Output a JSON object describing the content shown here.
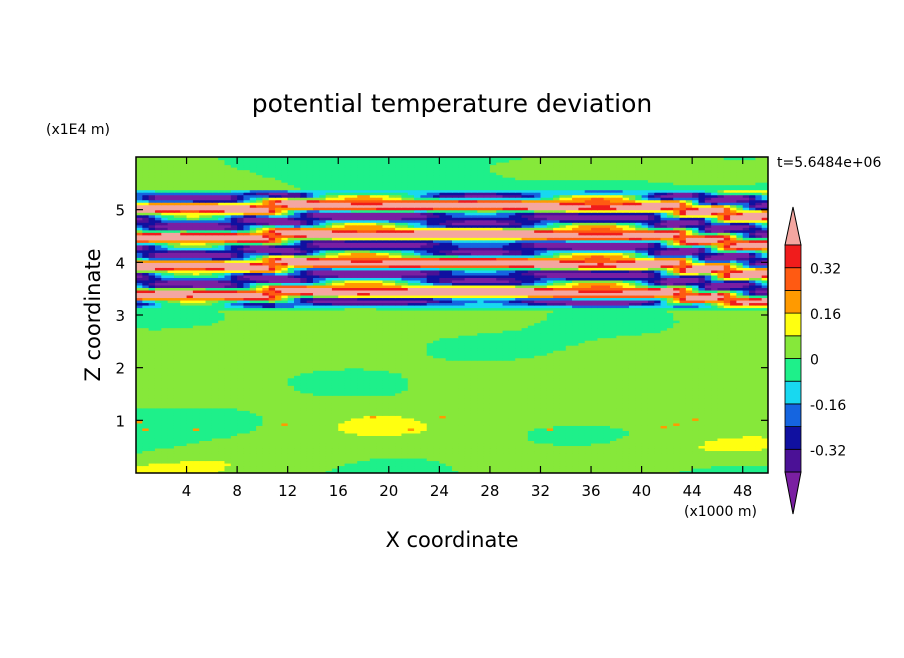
{
  "chart_data": {
    "type": "heatmap",
    "title": "potential temperature deviation",
    "xlabel": "X coordinate",
    "ylabel": "Z coordinate",
    "x_unit": "(x1000 m)",
    "y_unit": "(x1E4 m)",
    "time_label": "t=5.6484e+06",
    "xlim": [
      0,
      50
    ],
    "ylim": [
      0,
      6
    ],
    "x_ticks": [
      4,
      8,
      12,
      16,
      20,
      24,
      28,
      32,
      36,
      40,
      44,
      48
    ],
    "y_ticks": [
      1,
      2,
      3,
      4,
      5
    ],
    "colorbar": {
      "levels": [
        -0.48,
        -0.4,
        -0.32,
        -0.24,
        -0.16,
        -0.08,
        0,
        0.08,
        0.16,
        0.24,
        0.32,
        0.4
      ],
      "tick_labels": [
        "0.32",
        "0.16",
        "0",
        "-0.16",
        "-0.32"
      ],
      "tick_values": [
        0.32,
        0.16,
        0,
        -0.16,
        -0.32
      ],
      "colors_low_to_high": [
        "#7a1fa2",
        "#4b1196",
        "#1010a0",
        "#1565e0",
        "#18d8f0",
        "#1ef08a",
        "#86e83a",
        "#ffff10",
        "#ff9a00",
        "#ff5a12",
        "#f01c1c",
        "#f4a6a0"
      ]
    },
    "field_description": {
      "background_value": 0.0,
      "near_surface_band_values": [
        0.04,
        0.08
      ],
      "layered_region_z": [
        3.1,
        5.4
      ],
      "layered_region_values": [
        -0.48,
        0.48
      ]
    }
  }
}
